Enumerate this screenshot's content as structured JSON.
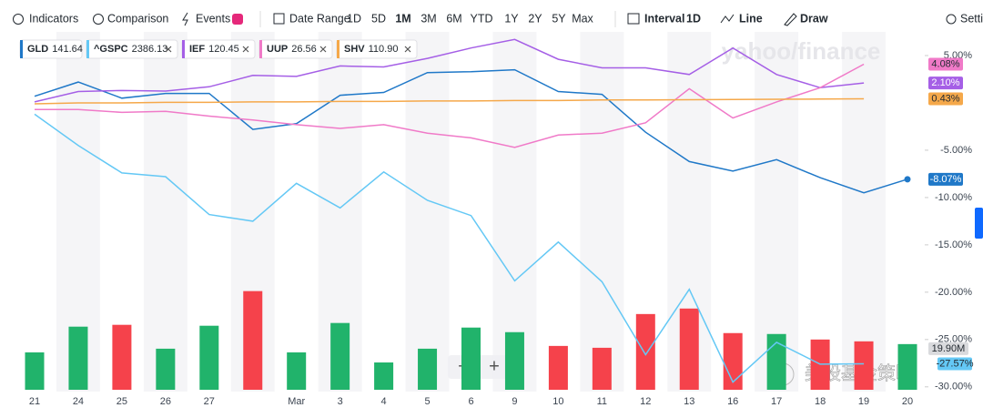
{
  "toolbar": {
    "indicators": "Indicators",
    "comparison": "Comparison",
    "events": "Events",
    "date_range": "Date Range",
    "ranges": [
      "1D",
      "5D",
      "1M",
      "3M",
      "6M",
      "YTD",
      "1Y",
      "2Y",
      "5Y",
      "Max"
    ],
    "active_range_index": 2,
    "interval": "Interval",
    "interval_value": "1D",
    "chart_style": "Line",
    "draw": "Draw",
    "settings": "Setti"
  },
  "watermark": "yahoo/finance",
  "wechat_watermark": "美股基金策略",
  "zoom_out": "−",
  "zoom_in": "+",
  "chart_data": {
    "type": "line",
    "categories": [
      "21",
      "24",
      "25",
      "26",
      "27",
      null,
      "Mar",
      "3",
      "4",
      "5",
      "6",
      "9",
      "10",
      "11",
      "12",
      "13",
      "16",
      "17",
      "18",
      "19",
      "20"
    ],
    "ylim": [
      -30.5,
      7.5
    ],
    "yticks": [
      {
        "value": 5,
        "label": "5.00%"
      },
      {
        "value": -5,
        "label": "-5.00%"
      },
      {
        "value": -10,
        "label": "-10.00%"
      },
      {
        "value": -15,
        "label": "-15.00%"
      },
      {
        "value": -20,
        "label": "-20.00%"
      },
      {
        "value": -25,
        "label": "-25.00%"
      },
      {
        "value": -30,
        "label": "-30.00%"
      }
    ],
    "grid": false,
    "series": [
      {
        "name": "GLD",
        "price": "141.64",
        "color": "#1f78c8",
        "end_label": "-8.07%",
        "end_dot": true,
        "values": [
          0.7,
          2.2,
          0.5,
          1.0,
          1.0,
          -2.8,
          -2.2,
          0.8,
          1.1,
          3.2,
          3.3,
          3.5,
          1.2,
          0.9,
          -3.1,
          -6.2,
          -7.2,
          -6.0,
          -7.9,
          -9.5,
          -8.07
        ]
      },
      {
        "name": "^GSPC",
        "price": "2386.13",
        "color": "#64c8f5",
        "end_label": "-27.57%",
        "end_dot": false,
        "values": [
          -1.2,
          -4.5,
          -7.4,
          -7.8,
          -11.8,
          -12.5,
          -8.5,
          -11.1,
          -7.3,
          -10.3,
          -11.9,
          -18.8,
          -14.7,
          -18.9,
          -26.6,
          -19.7,
          -29.5,
          -25.3,
          -27.6,
          -27.57,
          null
        ]
      },
      {
        "name": "IEF",
        "price": "120.45",
        "color": "#a55fe6",
        "end_label": "2.10%",
        "end_dot": false,
        "values": [
          0.1,
          1.2,
          1.3,
          1.25,
          1.7,
          2.9,
          2.8,
          3.9,
          3.8,
          4.7,
          5.8,
          6.7,
          4.6,
          3.7,
          3.7,
          3.0,
          5.8,
          3.0,
          1.6,
          2.1,
          null
        ]
      },
      {
        "name": "UUP",
        "price": "26.56",
        "color": "#f07ac8",
        "end_label": "4.08%",
        "end_dot": false,
        "values": [
          -0.7,
          -0.7,
          -1.0,
          -0.9,
          -1.4,
          -1.8,
          -2.3,
          -2.7,
          -2.3,
          -3.2,
          -3.7,
          -4.7,
          -3.4,
          -3.2,
          -2.1,
          1.5,
          -1.6,
          0.1,
          1.6,
          4.08,
          null
        ]
      },
      {
        "name": "SHV",
        "price": "110.90",
        "color": "#f5a84a",
        "end_label": "0.43%",
        "end_dot": false,
        "values": [
          -0.1,
          0,
          0,
          0.05,
          0.05,
          0.1,
          0.1,
          0.15,
          0.15,
          0.2,
          0.2,
          0.25,
          0.25,
          0.3,
          0.3,
          0.33,
          0.35,
          0.38,
          0.4,
          0.43,
          null
        ]
      }
    ],
    "volume": {
      "axis": "y2",
      "end_label": "19.90M",
      "values": [
        16.3,
        27.5,
        28.3,
        17.9,
        27.9,
        43.0,
        16.3,
        29.1,
        11.9,
        17.9,
        27.1,
        25.1,
        19.1,
        18.3,
        33.0,
        35.4,
        24.7,
        24.3,
        21.9,
        21.1,
        19.9
      ],
      "colors": [
        "#21b36b",
        "#21b36b",
        "#f5424b",
        "#21b36b",
        "#21b36b",
        "#f5424b",
        "#21b36b",
        "#21b36b",
        "#21b36b",
        "#21b36b",
        "#21b36b",
        "#21b36b",
        "#f5424b",
        "#f5424b",
        "#f5424b",
        "#f5424b",
        "#f5424b",
        "#21b36b",
        "#f5424b",
        "#f5424b",
        "#21b36b"
      ]
    },
    "y2lim": [
      0,
      50
    ]
  }
}
